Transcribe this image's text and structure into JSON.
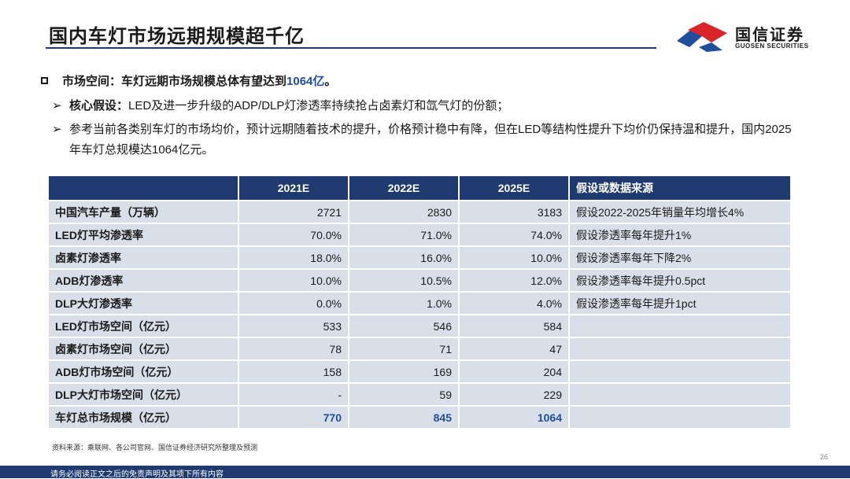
{
  "header": {
    "title": "国内车灯市场远期规模超千亿",
    "logo_cn": "国信证券",
    "logo_en": "GUOSEN SECURITIES"
  },
  "summary": {
    "prefix": "市场空间：车灯远期市场规模总体有望达到",
    "highlight": "1064亿",
    "suffix": "。"
  },
  "bullets": [
    {
      "bold": "核心假设：",
      "text": "LED及进一步升级的ADP/DLP灯渗透率持续抢占卤素灯和氙气灯的份额；"
    },
    {
      "bold": "",
      "text": "参考当前各类别车灯的市场均价，预计远期随着技术的提升，价格预计稳中有降，但在LED等结构性提升下均价仍保持温和提升，国内2025年车灯总规模达1064亿元。"
    }
  ],
  "table": {
    "columns": [
      "",
      "2021E",
      "2022E",
      "2025E",
      "假设或数据来源"
    ],
    "rows": [
      {
        "label": "中国汽车产量（万辆）",
        "v2021": "2721",
        "v2022": "2830",
        "v2025": "3183",
        "note": "假设2022-2025年销量年均增长4%"
      },
      {
        "label": "LED灯平均渗透率",
        "v2021": "70.0%",
        "v2022": "71.0%",
        "v2025": "74.0%",
        "note": "假设渗透率每年提升1%"
      },
      {
        "label": "卤素灯渗透率",
        "v2021": "18.0%",
        "v2022": "16.0%",
        "v2025": "10.0%",
        "note": "假设渗透率每年下降2%"
      },
      {
        "label": "ADB灯渗透率",
        "v2021": "10.0%",
        "v2022": "10.5%",
        "v2025": "12.0%",
        "note": "假设渗透率每年提升0.5pct"
      },
      {
        "label": "DLP大灯渗透率",
        "v2021": "0.0%",
        "v2022": "1.0%",
        "v2025": "4.0%",
        "note": "假设渗透率每年提升1pct"
      },
      {
        "label": "LED灯市场空间（亿元）",
        "v2021": "533",
        "v2022": "546",
        "v2025": "584",
        "note": ""
      },
      {
        "label": "卤素灯市场空间（亿元）",
        "v2021": "78",
        "v2022": "71",
        "v2025": "47",
        "note": ""
      },
      {
        "label": "ADB灯市场空间（亿元）",
        "v2021": "158",
        "v2022": "169",
        "v2025": "204",
        "note": ""
      },
      {
        "label": "DLP大灯市场空间（亿元）",
        "v2021": "-",
        "v2022": "59",
        "v2025": "229",
        "note": ""
      },
      {
        "label": "车灯总市场规模（亿元）",
        "v2021": "770",
        "v2022": "845",
        "v2025": "1064",
        "note": ""
      }
    ]
  },
  "source": "资料来源：乘联网、各公司官网、国信证券经济研究所整理及预测",
  "page_number": "26",
  "footer": "请务必阅读正文之后的免责声明及其项下所有内容",
  "colors": {
    "brand_navy": "#1f3a6e",
    "row_bg": "#d9dfe9",
    "highlight_blue": "#1f4e9b",
    "logo_red": "#d9252a",
    "logo_blue": "#1f4e9b"
  }
}
